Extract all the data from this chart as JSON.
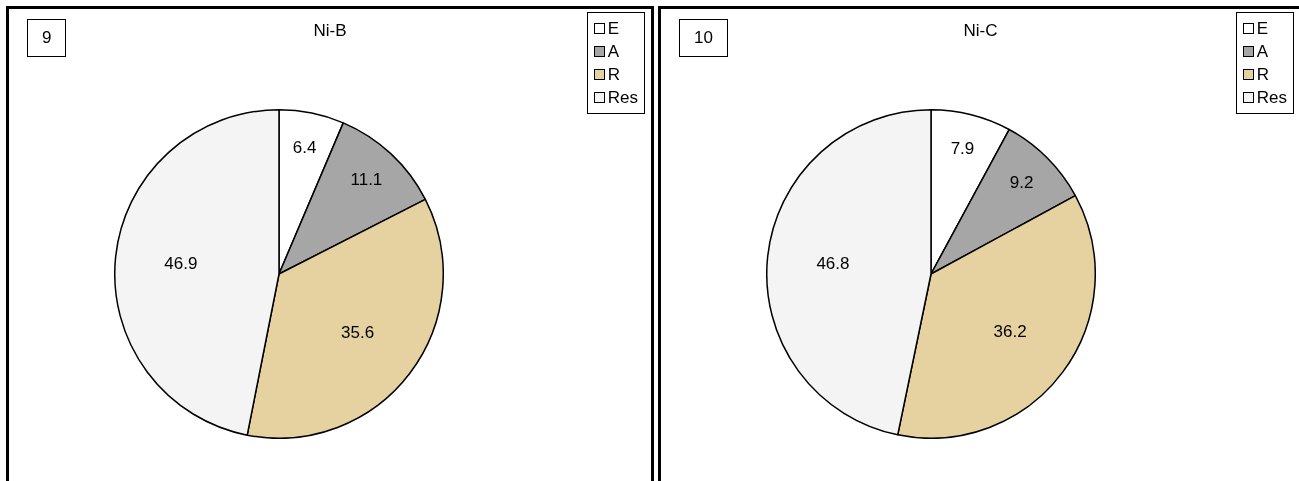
{
  "chart_data": [
    {
      "type": "pie",
      "title": "Ni-B",
      "annotations": [
        "9"
      ],
      "categories": [
        "E",
        "A",
        "R",
        "Res"
      ],
      "values": [
        6.4,
        11.1,
        35.6,
        46.9
      ],
      "colors": [
        "#ffffff",
        "#a6a6a6",
        "#e6d2a0",
        "#f4f4f4"
      ],
      "data_labels": true,
      "legend": "top right"
    },
    {
      "type": "pie",
      "title": "Ni-C",
      "annotations": [
        "10"
      ],
      "categories": [
        "E",
        "A",
        "R",
        "Res"
      ],
      "values": [
        7.9,
        9.2,
        36.2,
        46.8
      ],
      "colors": [
        "#ffffff",
        "#a6a6a6",
        "#e6d2a0",
        "#f4f4f4"
      ],
      "data_labels": true,
      "legend": "top right"
    }
  ]
}
